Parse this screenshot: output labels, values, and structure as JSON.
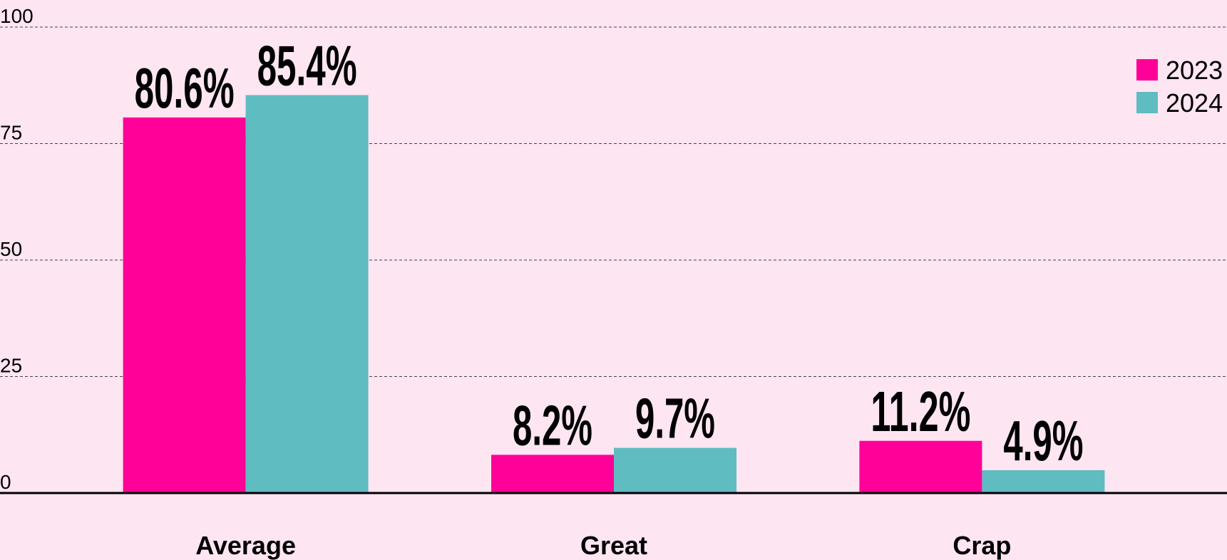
{
  "chart_data": {
    "type": "bar",
    "categories": [
      "Average",
      "Great",
      "Crap"
    ],
    "series": [
      {
        "name": "2023",
        "color": "#ff0099",
        "values": [
          80.6,
          8.2,
          11.2
        ],
        "value_labels": [
          "80.6%",
          "8.2%",
          "11.2%"
        ]
      },
      {
        "name": "2024",
        "color": "#5fbcc0",
        "values": [
          85.4,
          9.7,
          4.9
        ],
        "value_labels": [
          "85.4%",
          "9.7%",
          "4.9%"
        ]
      }
    ],
    "ylim": [
      0,
      100
    ],
    "yticks": [
      0,
      25,
      50,
      75,
      100
    ],
    "grid": true,
    "legend": "top-right"
  }
}
